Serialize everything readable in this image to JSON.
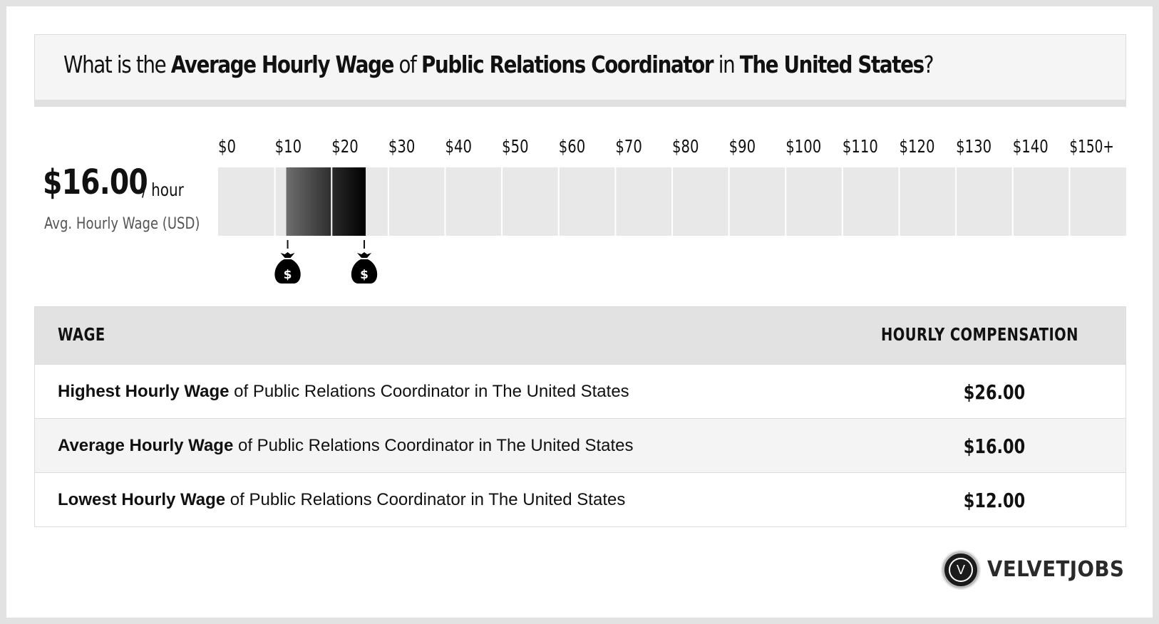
{
  "title": {
    "p1": "What is the ",
    "b1": "Average Hourly Wage",
    "p2": " of ",
    "b2": "Public Relations Coordinator",
    "p3": " in ",
    "b3": "The United States",
    "p4": "?"
  },
  "average": {
    "value": "$16.00",
    "unit": "/ hour",
    "caption": "Avg. Hourly Wage (USD)"
  },
  "chart_data": {
    "type": "range",
    "categories": [
      "$0",
      "$10",
      "$20",
      "$30",
      "$40",
      "$50",
      "$60",
      "$70",
      "$80",
      "$90",
      "$100",
      "$110",
      "$120",
      "$130",
      "$140",
      "$150+"
    ],
    "xlim": [
      0,
      150
    ],
    "range_low": 12,
    "range_high": 26,
    "average": 16,
    "markers": [
      12,
      26
    ],
    "marker_icon": "money-bag-icon",
    "marker_symbol": "$"
  },
  "table": {
    "header_left": "WAGE",
    "header_right": "HOURLY COMPENSATION",
    "rows": [
      {
        "bold": "Highest Hourly Wage",
        "rest": " of Public Relations Coordinator in The United States",
        "value": "$26.00"
      },
      {
        "bold": "Average Hourly Wage",
        "rest": " of Public Relations Coordinator in The United States",
        "value": "$16.00"
      },
      {
        "bold": "Lowest Hourly Wage",
        "rest": " of Public Relations Coordinator in The United States",
        "value": "$12.00"
      }
    ]
  },
  "logo": {
    "letter": "V",
    "text": "VELVETJOBS"
  },
  "colors": {
    "frame": "#e2e2e2",
    "bar_bg": "#e8e8e8",
    "range_dark": "#050505",
    "range_mid": "#666666",
    "header_bg": "#e2e2e2",
    "alt_row": "#f4f4f4"
  }
}
